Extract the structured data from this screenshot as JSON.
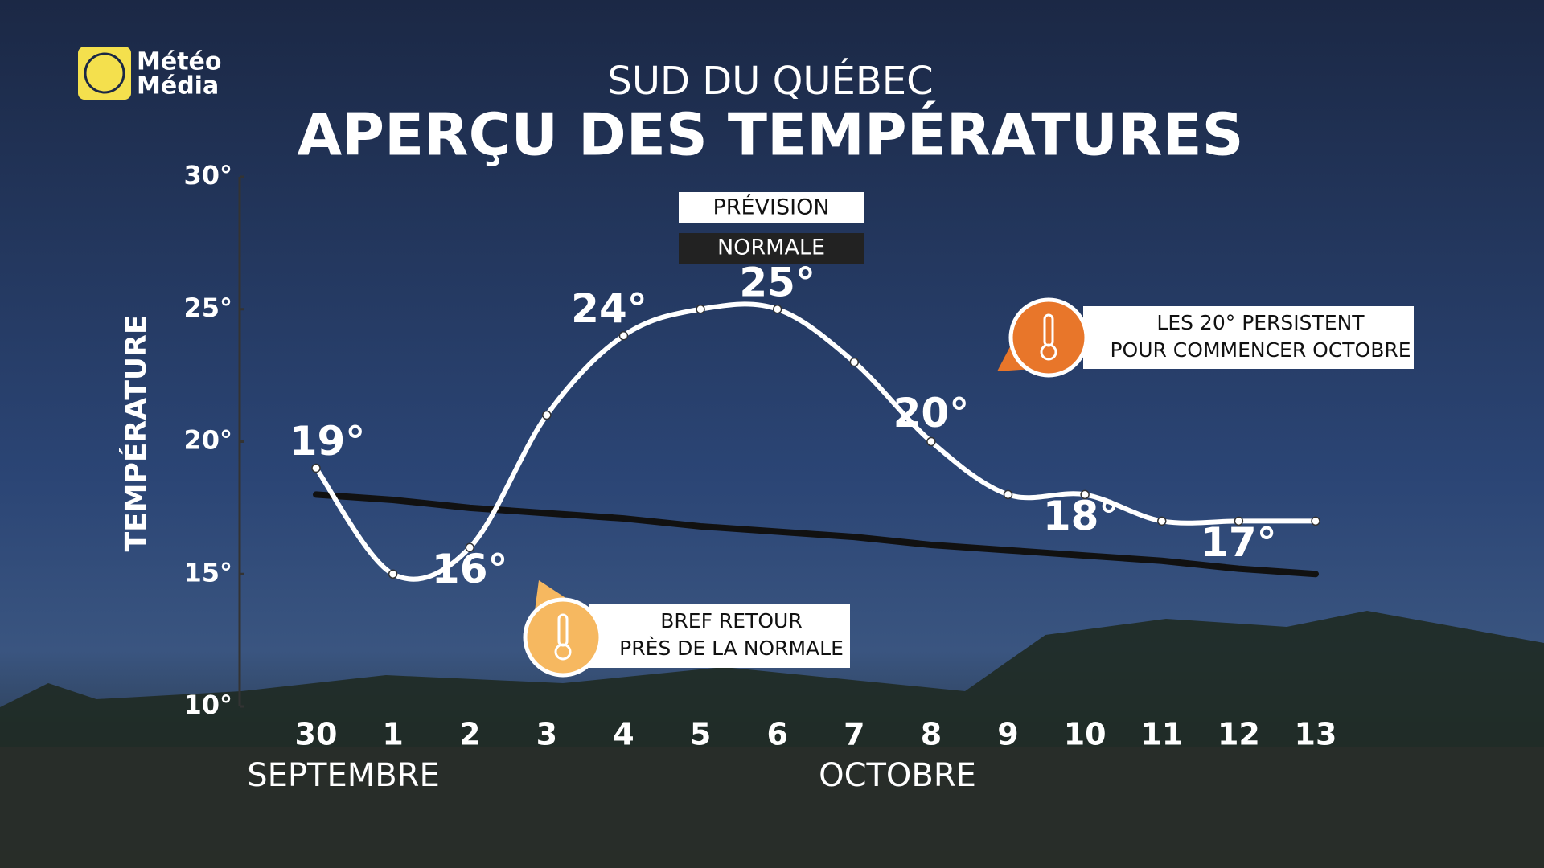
{
  "chart_data": {
    "type": "line",
    "logo_text": [
      "Météo",
      "Média"
    ],
    "subtitle": "SUD DU QUÉBEC",
    "title": "APERÇU DES TEMPÉRATURES",
    "y_label": "TEMPÉRATURE",
    "categories": [
      "30",
      "1",
      "2",
      "3",
      "4",
      "5",
      "6",
      "7",
      "8",
      "9",
      "10",
      "11",
      "12",
      "13"
    ],
    "month_labels": [
      "SEPTEMBRE",
      "OCTOBRE"
    ],
    "series": [
      {
        "name": "PRÉVISION",
        "color": "#ffffff",
        "values": [
          19,
          15,
          16,
          21,
          24,
          25,
          25,
          23,
          20,
          18,
          18,
          17,
          17,
          17
        ],
        "value_labels": [
          "19°",
          null,
          "16°",
          null,
          "24°",
          null,
          "25°",
          null,
          "20°",
          null,
          "18°",
          null,
          "17°",
          null
        ]
      },
      {
        "name": "NORMALE",
        "color": "#111111",
        "values": [
          18,
          17.8,
          17.5,
          17.3,
          17.1,
          16.8,
          16.6,
          16.4,
          16.1,
          15.9,
          15.7,
          15.5,
          15.2,
          15
        ]
      }
    ],
    "ylim": [
      10,
      30
    ],
    "yticks": [
      {
        "value": 10,
        "label": "10°"
      },
      {
        "value": 15,
        "label": "15°"
      },
      {
        "value": 20,
        "label": "20°"
      },
      {
        "value": 25,
        "label": "25°"
      },
      {
        "value": 30,
        "label": "30°"
      }
    ],
    "annotations": [
      {
        "lines": [
          "LES 20° PERSISTENT",
          "POUR COMMENCER OCTOBRE"
        ],
        "color": "#e8762a"
      },
      {
        "lines": [
          "BREF RETOUR",
          "PRÈS DE LA NORMALE"
        ],
        "color": "#f6b860"
      }
    ]
  }
}
